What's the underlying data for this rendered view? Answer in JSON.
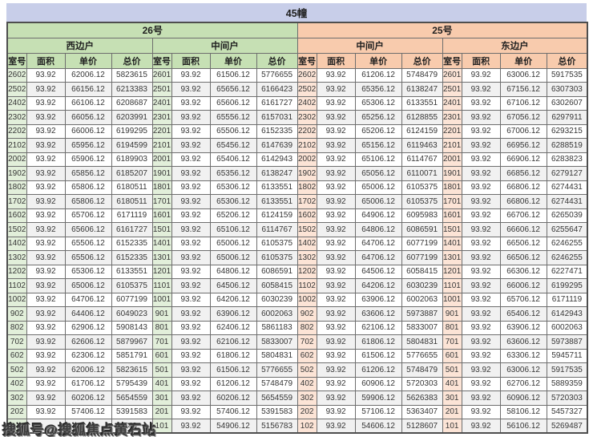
{
  "banner": {
    "title": "45幢"
  },
  "watermark": {
    "text": "搜狐号@搜狐焦点黄石站"
  },
  "columns": [
    "室号",
    "面积",
    "单价",
    "总价"
  ],
  "colors": {
    "banner_bg": "#c8cee9",
    "green_header": "#c6e0b4",
    "green_room_tint": "#e2efda",
    "peach_header": "#f8cbad",
    "peach_room_tint": "#fce4d6",
    "row_stripe": "#f1f1f1",
    "grid_border": "#6e6e6e"
  },
  "sections": [
    {
      "building": "26号",
      "theme": "green",
      "groups": [
        {
          "name": "西边户",
          "rows": [
            [
              "2602",
              "93.92",
              "62006.12",
              "5823615"
            ],
            [
              "2502",
              "93.92",
              "66156.12",
              "6213383"
            ],
            [
              "2402",
              "93.92",
              "66106.12",
              "6208687"
            ],
            [
              "2302",
              "93.92",
              "66056.12",
              "6203991"
            ],
            [
              "2202",
              "93.92",
              "66006.12",
              "6199295"
            ],
            [
              "2102",
              "93.92",
              "65956.12",
              "6194599"
            ],
            [
              "2002",
              "93.92",
              "65906.12",
              "6189903"
            ],
            [
              "1902",
              "93.92",
              "65856.12",
              "6185207"
            ],
            [
              "1802",
              "93.92",
              "65806.12",
              "6180511"
            ],
            [
              "1702",
              "93.92",
              "65806.12",
              "6180511"
            ],
            [
              "1602",
              "93.92",
              "65706.12",
              "6171119"
            ],
            [
              "1502",
              "93.92",
              "65606.12",
              "6161727"
            ],
            [
              "1402",
              "93.92",
              "65506.12",
              "6152335"
            ],
            [
              "1302",
              "93.92",
              "65506.12",
              "6152335"
            ],
            [
              "1202",
              "93.92",
              "65306.12",
              "6133551"
            ],
            [
              "1102",
              "93.92",
              "65006.12",
              "6105375"
            ],
            [
              "1002",
              "93.92",
              "64706.12",
              "6077199"
            ],
            [
              "902",
              "93.92",
              "64406.12",
              "6049023"
            ],
            [
              "802",
              "93.92",
              "62906.12",
              "5908143"
            ],
            [
              "702",
              "93.92",
              "62606.12",
              "5879967"
            ],
            [
              "602",
              "93.92",
              "62306.12",
              "5851791"
            ],
            [
              "502",
              "93.92",
              "62006.12",
              "5823615"
            ],
            [
              "402",
              "93.92",
              "61706.12",
              "5795439"
            ],
            [
              "302",
              "93.92",
              "60206.12",
              "5654559"
            ],
            [
              "202",
              "93.92",
              "57406.12",
              "5391583"
            ],
            [
              "",
              "",
              "",
              "743"
            ]
          ]
        },
        {
          "name": "中间户",
          "rows": [
            [
              "2601",
              "93.92",
              "61506.12",
              "5776655"
            ],
            [
              "2501",
              "93.92",
              "65656.12",
              "6166423"
            ],
            [
              "2401",
              "93.92",
              "65606.12",
              "6161727"
            ],
            [
              "2301",
              "93.92",
              "65556.12",
              "6157031"
            ],
            [
              "2201",
              "93.92",
              "65506.12",
              "6152335"
            ],
            [
              "2101",
              "93.92",
              "65456.12",
              "6147639"
            ],
            [
              "2001",
              "93.92",
              "65406.12",
              "6142943"
            ],
            [
              "1901",
              "93.92",
              "65356.12",
              "6138247"
            ],
            [
              "1801",
              "93.92",
              "65306.12",
              "6133551"
            ],
            [
              "1701",
              "93.92",
              "65306.12",
              "6133551"
            ],
            [
              "1601",
              "93.92",
              "65206.12",
              "6124159"
            ],
            [
              "1501",
              "93.92",
              "65106.12",
              "6114767"
            ],
            [
              "1401",
              "93.92",
              "65006.12",
              "6105375"
            ],
            [
              "1301",
              "93.92",
              "65006.12",
              "6105375"
            ],
            [
              "1201",
              "93.92",
              "64806.12",
              "6086591"
            ],
            [
              "1101",
              "93.92",
              "64506.12",
              "6058415"
            ],
            [
              "1001",
              "93.92",
              "64206.12",
              "6030239"
            ],
            [
              "901",
              "93.92",
              "63906.12",
              "6002063"
            ],
            [
              "801",
              "93.92",
              "62406.12",
              "5861183"
            ],
            [
              "701",
              "93.92",
              "62106.12",
              "5833007"
            ],
            [
              "601",
              "93.92",
              "61806.12",
              "5804831"
            ],
            [
              "501",
              "93.92",
              "61506.12",
              "5776655"
            ],
            [
              "401",
              "93.92",
              "61206.12",
              "5748479"
            ],
            [
              "301",
              "93.92",
              "60206.12",
              "5654559"
            ],
            [
              "201",
              "93.92",
              "57406.12",
              "5391583"
            ],
            [
              "101",
              "93.92",
              "54906.12",
              "5156783"
            ]
          ]
        }
      ]
    },
    {
      "building": "25号",
      "theme": "peach",
      "groups": [
        {
          "name": "中间户",
          "rows": [
            [
              "2602",
              "93.92",
              "61206.12",
              "5748479"
            ],
            [
              "2502",
              "93.92",
              "65356.12",
              "6138247"
            ],
            [
              "2402",
              "93.92",
              "65306.12",
              "6133551"
            ],
            [
              "2302",
              "93.92",
              "65256.12",
              "6128855"
            ],
            [
              "2202",
              "93.92",
              "65206.12",
              "6124159"
            ],
            [
              "2102",
              "93.92",
              "65156.12",
              "6119463"
            ],
            [
              "2002",
              "93.92",
              "65106.12",
              "6114767"
            ],
            [
              "1902",
              "93.92",
              "65056.12",
              "6110071"
            ],
            [
              "1802",
              "93.92",
              "65006.12",
              "6105375"
            ],
            [
              "1702",
              "93.92",
              "65006.12",
              "6105375"
            ],
            [
              "1602",
              "93.92",
              "64906.12",
              "6095983"
            ],
            [
              "1502",
              "93.92",
              "64806.12",
              "6086591"
            ],
            [
              "1402",
              "93.92",
              "64706.12",
              "6077199"
            ],
            [
              "1302",
              "93.92",
              "64706.12",
              "6077199"
            ],
            [
              "1202",
              "93.92",
              "64506.12",
              "6058415"
            ],
            [
              "1102",
              "93.92",
              "64206.12",
              "6030239"
            ],
            [
              "1002",
              "93.92",
              "63906.12",
              "6002063"
            ],
            [
              "902",
              "93.92",
              "63606.12",
              "5973887"
            ],
            [
              "802",
              "93.92",
              "62106.12",
              "5833007"
            ],
            [
              "702",
              "93.92",
              "61806.12",
              "5804831"
            ],
            [
              "602",
              "93.92",
              "61506.12",
              "5776655"
            ],
            [
              "502",
              "93.92",
              "61206.12",
              "5748479"
            ],
            [
              "402",
              "93.92",
              "60906.12",
              "5720303"
            ],
            [
              "302",
              "93.92",
              "59906.12",
              "5626383"
            ],
            [
              "202",
              "93.92",
              "57106.12",
              "5363407"
            ],
            [
              "102",
              "93.92",
              "54606.12",
              "5128607"
            ]
          ]
        },
        {
          "name": "东边户",
          "rows": [
            [
              "2601",
              "93.92",
              "63006.12",
              "5917535"
            ],
            [
              "2501",
              "93.92",
              "67156.12",
              "6307303"
            ],
            [
              "2401",
              "93.92",
              "67106.12",
              "6302607"
            ],
            [
              "2301",
              "93.92",
              "67056.12",
              "6297911"
            ],
            [
              "2201",
              "93.92",
              "67006.12",
              "6293215"
            ],
            [
              "2101",
              "93.92",
              "66956.12",
              "6288519"
            ],
            [
              "2001",
              "93.92",
              "66906.12",
              "6283823"
            ],
            [
              "1901",
              "93.92",
              "66856.12",
              "6279127"
            ],
            [
              "1801",
              "93.92",
              "66806.12",
              "6274431"
            ],
            [
              "1701",
              "93.92",
              "66806.12",
              "6274431"
            ],
            [
              "1601",
              "93.92",
              "66706.12",
              "6265039"
            ],
            [
              "1501",
              "93.92",
              "66606.12",
              "6255647"
            ],
            [
              "1401",
              "93.92",
              "66506.12",
              "6246255"
            ],
            [
              "1301",
              "93.92",
              "66506.12",
              "6246255"
            ],
            [
              "1201",
              "93.92",
              "66306.12",
              "6227471"
            ],
            [
              "1101",
              "93.92",
              "66006.12",
              "6199295"
            ],
            [
              "1001",
              "93.92",
              "65706.12",
              "6171119"
            ],
            [
              "901",
              "93.92",
              "65406.12",
              "6142943"
            ],
            [
              "801",
              "93.92",
              "63906.12",
              "6002063"
            ],
            [
              "701",
              "93.92",
              "63606.12",
              "5973887"
            ],
            [
              "601",
              "93.92",
              "63306.12",
              "5945711"
            ],
            [
              "501",
              "93.92",
              "63006.12",
              "5917535"
            ],
            [
              "401",
              "93.92",
              "62706.12",
              "5889359"
            ],
            [
              "301",
              "93.92",
              "60906.12",
              "5720303"
            ],
            [
              "201",
              "93.92",
              "58106.12",
              "5457327"
            ],
            [
              "101",
              "93.92",
              "56106.12",
              "5269487"
            ]
          ]
        }
      ]
    }
  ]
}
